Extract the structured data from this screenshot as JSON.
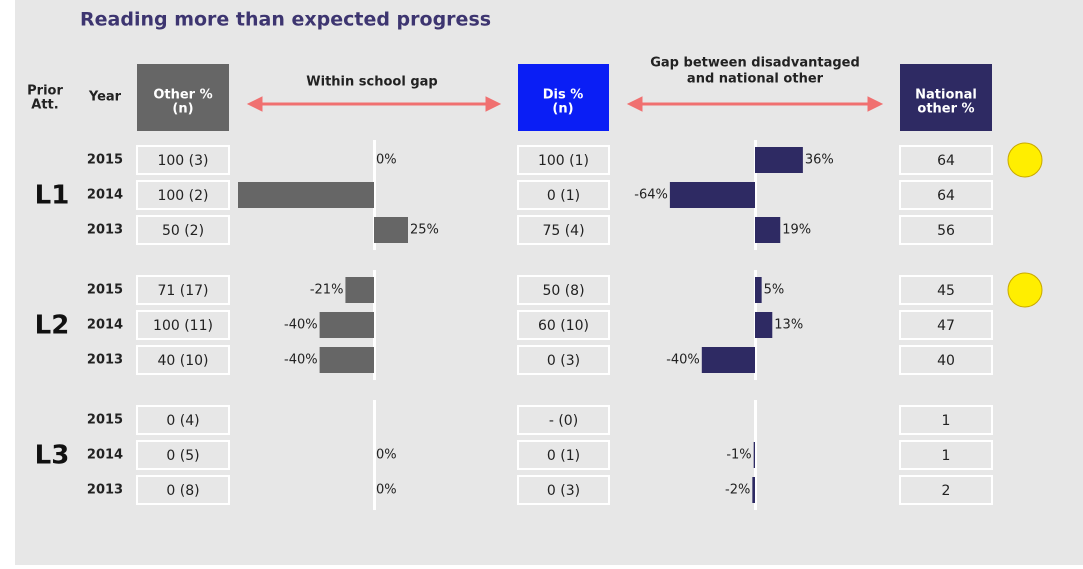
{
  "title": "Reading more than expected progress",
  "headers": {
    "prior": [
      "Prior",
      "Att."
    ],
    "year": "Year",
    "other": [
      "Other %",
      "(n)"
    ],
    "within_gap": "Within school gap",
    "dis": [
      "Dis %",
      "(n)"
    ],
    "national_gap": [
      "Gap between disadvantaged",
      "and national other"
    ],
    "national": [
      "National",
      "other %"
    ]
  },
  "groups": [
    {
      "label": "L1",
      "rows": [
        {
          "year": "2015",
          "other": "100 (3)",
          "gap": 0,
          "gap_label": "0%",
          "dis": "100 (1)",
          "nat_gap": 36,
          "nat_gap_label": "36%",
          "national": "64"
        },
        {
          "year": "2014",
          "other": "100 (2)",
          "gap": -100,
          "dis": "0 (1)",
          "nat_gap": -64,
          "nat_gap_label": "-64%",
          "national": "64"
        },
        {
          "year": "2013",
          "other": "50 (2)",
          "gap": 25,
          "gap_label": "25%",
          "dis": "75 (4)",
          "nat_gap": 19,
          "nat_gap_label": "19%",
          "national": "56"
        }
      ]
    },
    {
      "label": "L2",
      "rows": [
        {
          "year": "2015",
          "other": "71 (17)",
          "gap": -21,
          "gap_label": "-21%",
          "dis": "50 (8)",
          "nat_gap": 5,
          "nat_gap_label": "5%",
          "national": "45"
        },
        {
          "year": "2014",
          "other": "100 (11)",
          "gap": -40,
          "gap_label": "-40%",
          "dis": "60 (10)",
          "nat_gap": 13,
          "nat_gap_label": "13%",
          "national": "47"
        },
        {
          "year": "2013",
          "other": "40 (10)",
          "gap": -40,
          "gap_label": "-40%",
          "dis": "0 (3)",
          "nat_gap": -40,
          "nat_gap_label": "-40%",
          "national": "40"
        }
      ]
    },
    {
      "label": "L3",
      "rows": [
        {
          "year": "2015",
          "other": "0 (4)",
          "gap": null,
          "dis": "- (0)",
          "nat_gap": null,
          "national": "1"
        },
        {
          "year": "2014",
          "other": "0 (5)",
          "gap": 0,
          "gap_label": "0%",
          "dis": "0 (1)",
          "nat_gap": -1,
          "nat_gap_label": "-1%",
          "national": "1"
        },
        {
          "year": "2013",
          "other": "0 (8)",
          "gap": 0,
          "gap_label": "0%",
          "dis": "0 (3)",
          "nat_gap": -2,
          "nat_gap_label": "-2%",
          "national": "2"
        }
      ]
    }
  ]
}
